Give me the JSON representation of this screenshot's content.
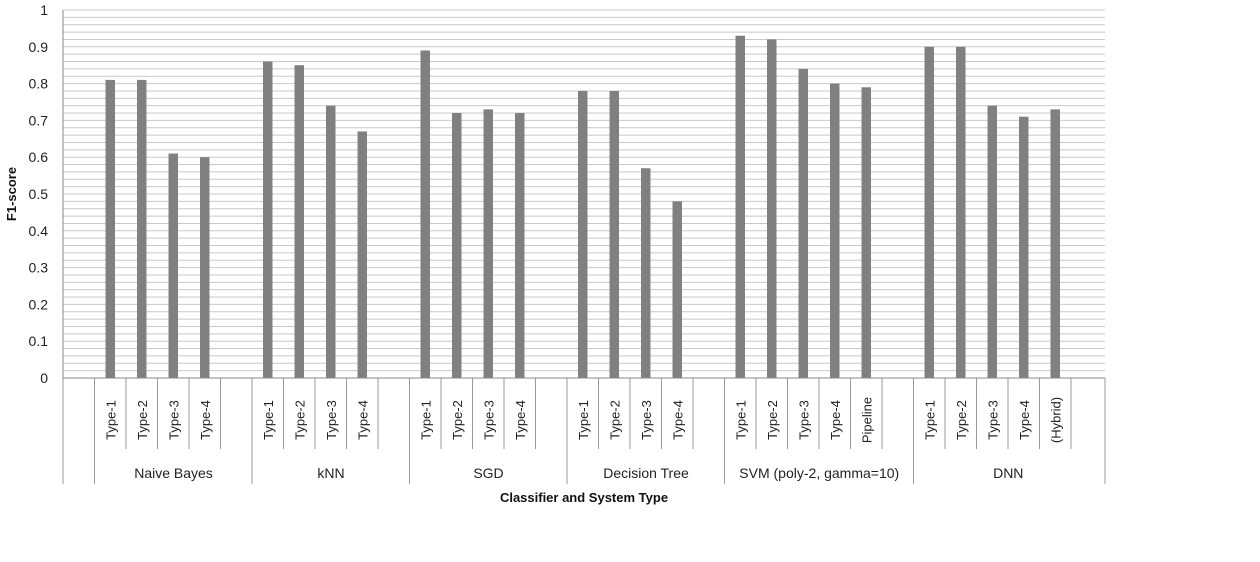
{
  "chart_data": {
    "type": "bar",
    "title": "",
    "xlabel": "Classifier and System Type",
    "ylabel": "F1-score",
    "ylim": [
      0,
      1
    ],
    "yticks": [
      "0",
      "0.1",
      "0.2",
      "0.3",
      "0.4",
      "0.5",
      "0.6",
      "0.7",
      "0.8",
      "0.9",
      "1"
    ],
    "grid": true,
    "legend": "none",
    "bar_color": "#808080",
    "groups": [
      {
        "name": "Naive Bayes",
        "categories": [
          "Type-1",
          "Type-2",
          "Type-3",
          "Type-4"
        ],
        "values": [
          0.81,
          0.81,
          0.61,
          0.6
        ]
      },
      {
        "name": "kNN",
        "categories": [
          "Type-1",
          "Type-2",
          "Type-3",
          "Type-4"
        ],
        "values": [
          0.86,
          0.85,
          0.74,
          0.67
        ]
      },
      {
        "name": "SGD",
        "categories": [
          "Type-1",
          "Type-2",
          "Type-3",
          "Type-4"
        ],
        "values": [
          0.89,
          0.72,
          0.73,
          0.72
        ]
      },
      {
        "name": "Decision Tree",
        "categories": [
          "Type-1",
          "Type-2",
          "Type-3",
          "Type-4"
        ],
        "values": [
          0.78,
          0.78,
          0.57,
          0.48
        ]
      },
      {
        "name": "SVM (poly-2, gamma=10)",
        "categories": [
          "Type-1",
          "Type-2",
          "Type-3",
          "Type-4",
          "Pipeline"
        ],
        "values": [
          0.93,
          0.92,
          0.84,
          0.8,
          0.79
        ]
      },
      {
        "name": "DNN",
        "categories": [
          "Type-1",
          "Type-2",
          "Type-3",
          "Type-4",
          "(Hybrid)"
        ],
        "values": [
          0.9,
          0.9,
          0.74,
          0.71,
          0.73
        ]
      }
    ]
  }
}
